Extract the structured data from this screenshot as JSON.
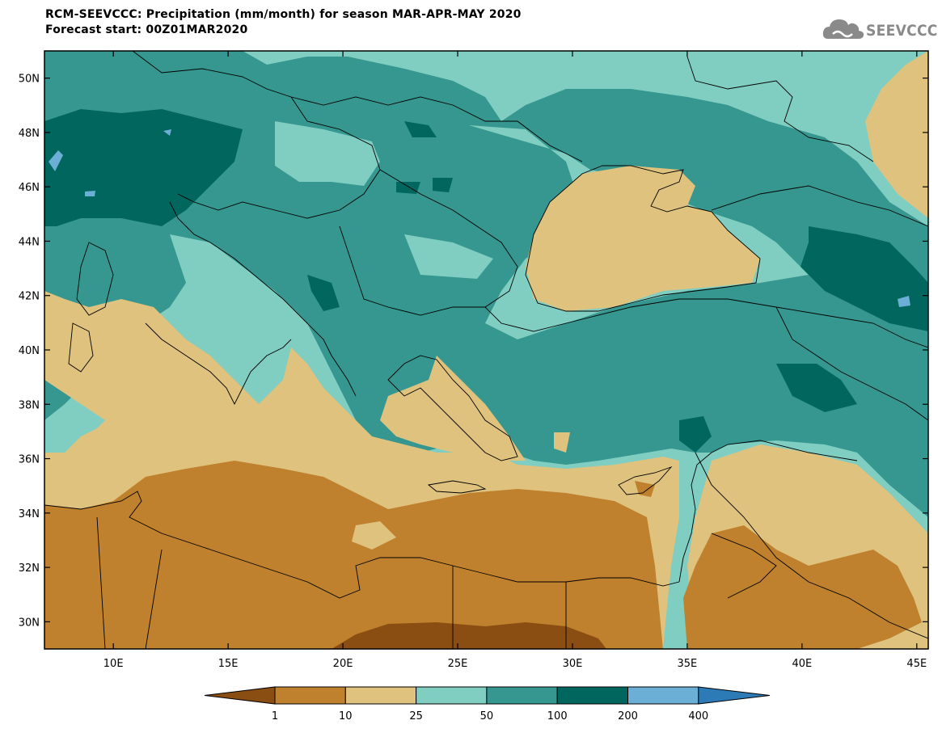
{
  "title": {
    "line1": "RCM-SEEVCCC: Precipitation (mm/month) for season MAR-APR-MAY 2020",
    "line2": "Forecast start: 00Z01MAR2020"
  },
  "logo": {
    "text": "SEEVCCC",
    "icon": "cloud-icon"
  },
  "map": {
    "lon_range": [
      7,
      45.5
    ],
    "lat_range": [
      29,
      51
    ],
    "lat_ticks": [
      "50N",
      "48N",
      "46N",
      "44N",
      "42N",
      "40N",
      "38N",
      "36N",
      "34N",
      "32N",
      "30N"
    ],
    "lon_ticks": [
      "10E",
      "15E",
      "20E",
      "25E",
      "30E",
      "35E",
      "40E",
      "45E"
    ]
  },
  "colorbar": {
    "levels": [
      "1",
      "10",
      "25",
      "50",
      "100",
      "200",
      "400"
    ],
    "colors": [
      "#8a4e12",
      "#bf812d",
      "#dfc27d",
      "#80cdc1",
      "#35978f",
      "#01665e",
      "#6baed6",
      "#2c7bb6"
    ],
    "units": "mm/month"
  }
}
